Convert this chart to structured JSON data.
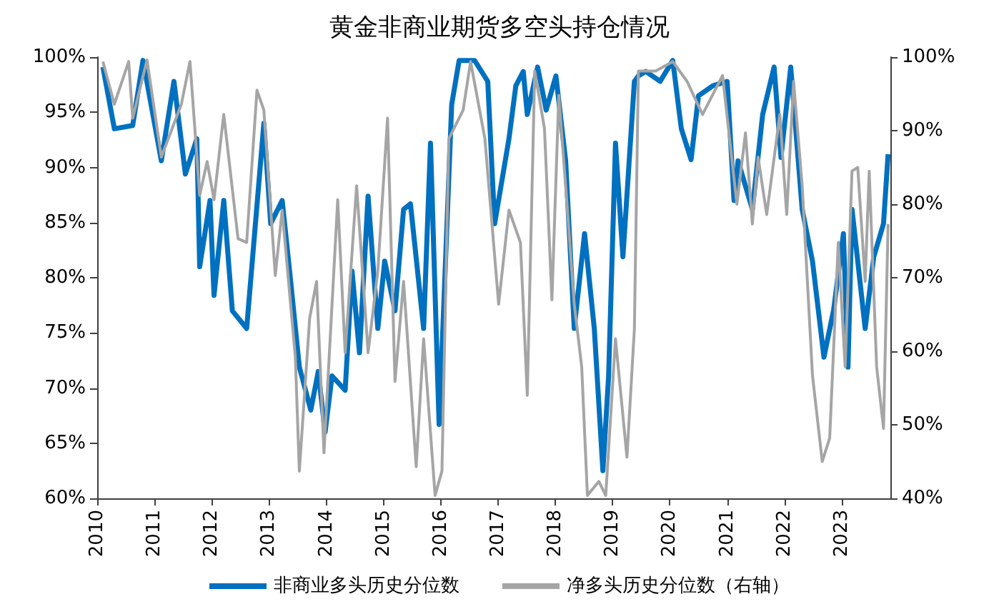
{
  "chart_data": {
    "type": "line",
    "title": "黄金非商业期货多空头持仓情况",
    "xlim": [
      2010,
      2023.85
    ],
    "xticks": [
      2010,
      2011,
      2012,
      2013,
      2014,
      2015,
      2016,
      2017,
      2018,
      2019,
      2020,
      2021,
      2022,
      2023
    ],
    "ylim": [
      60,
      100
    ],
    "yticks": [
      {
        "value": 60,
        "label": "60%"
      },
      {
        "value": 65,
        "label": "65%"
      },
      {
        "value": 70,
        "label": "70%"
      },
      {
        "value": 75,
        "label": "75%"
      },
      {
        "value": 80,
        "label": "80%"
      },
      {
        "value": 85,
        "label": "85%"
      },
      {
        "value": 90,
        "label": "90%"
      },
      {
        "value": 95,
        "label": "95%"
      },
      {
        "value": 100,
        "label": "100%"
      }
    ],
    "y2lim": [
      40,
      100
    ],
    "y2ticks": [
      {
        "value": 40,
        "label": "40%"
      },
      {
        "value": 50,
        "label": "50%"
      },
      {
        "value": 60,
        "label": "60%"
      },
      {
        "value": 70,
        "label": "70%"
      },
      {
        "value": 80,
        "label": "80%"
      },
      {
        "value": 90,
        "label": "90%"
      },
      {
        "value": 100,
        "label": "100%"
      }
    ],
    "grid": false,
    "legend": "bottom",
    "marker": "none",
    "series": [
      {
        "name": "非商业多头历史分位数",
        "color": "#0070c0",
        "x": [
          2010.1,
          2010.3,
          2010.62,
          2010.8,
          2011.12,
          2011.34,
          2011.54,
          2011.74,
          2011.79,
          2011.97,
          2012.04,
          2012.21,
          2012.36,
          2012.61,
          2012.91,
          2013.03,
          2013.23,
          2013.36,
          2013.53,
          2013.73,
          2013.86,
          2013.98,
          2014.1,
          2014.33,
          2014.45,
          2014.58,
          2014.73,
          2014.9,
          2015.02,
          2015.2,
          2015.35,
          2015.47,
          2015.7,
          2015.82,
          2015.97,
          2016.19,
          2016.32,
          2016.59,
          2016.82,
          2016.94,
          2017.19,
          2017.31,
          2017.44,
          2017.51,
          2017.69,
          2017.84,
          2018.01,
          2018.18,
          2018.33,
          2018.51,
          2018.68,
          2018.83,
          2018.93,
          2019.05,
          2019.18,
          2019.38,
          2019.45,
          2019.58,
          2019.83,
          2020.05,
          2020.2,
          2020.37,
          2020.5,
          2020.75,
          2021.0,
          2021.12,
          2021.19,
          2021.44,
          2021.62,
          2021.82,
          2021.94,
          2022.11,
          2022.31,
          2022.49,
          2022.69,
          2022.86,
          2023.03,
          2023.11,
          2023.18,
          2023.41,
          2023.56,
          2023.73,
          2023.81
        ],
        "values": [
          99.1,
          93.5,
          93.8,
          99.7,
          90.6,
          97.8,
          89.4,
          92.6,
          81,
          87,
          78.4,
          87,
          77,
          75.4,
          94,
          84.9,
          87,
          80.6,
          71.9,
          68,
          71.5,
          66,
          71.1,
          69.8,
          80.6,
          73.2,
          87.4,
          75.4,
          81.5,
          77,
          86.2,
          86.7,
          75.4,
          92.2,
          66.7,
          95.7,
          99.7,
          99.7,
          97.8,
          84.9,
          92.6,
          97.4,
          98.7,
          94.8,
          99.1,
          95.2,
          98.3,
          90.6,
          75.4,
          84,
          75.4,
          62.5,
          71.1,
          92.2,
          81.9,
          97.8,
          98.3,
          98.7,
          97.8,
          99.7,
          93.5,
          90.7,
          96.5,
          97.4,
          97.8,
          87,
          90.6,
          86.2,
          94.8,
          99.1,
          90.9,
          99.1,
          86.2,
          81.5,
          72.8,
          77.1,
          84,
          71.9,
          86.2,
          75.4,
          81.9,
          84.9,
          91.2
        ]
      },
      {
        "name": "净多头历史分位数（右轴）",
        "color": "#a5a5a5",
        "axis": "y2",
        "x": [
          2010.1,
          2010.3,
          2010.55,
          2010.62,
          2010.87,
          2011.12,
          2011.47,
          2011.62,
          2011.79,
          2011.92,
          2012.04,
          2012.21,
          2012.46,
          2012.61,
          2012.79,
          2012.91,
          2013.11,
          2013.23,
          2013.46,
          2013.53,
          2013.71,
          2013.83,
          2013.96,
          2014.2,
          2014.33,
          2014.53,
          2014.73,
          2014.9,
          2015.07,
          2015.2,
          2015.35,
          2015.57,
          2015.7,
          2015.9,
          2016.02,
          2016.14,
          2016.39,
          2016.52,
          2016.77,
          2017.01,
          2017.19,
          2017.39,
          2017.51,
          2017.64,
          2017.81,
          2017.94,
          2018.06,
          2018.18,
          2018.33,
          2018.46,
          2018.56,
          2018.76,
          2018.88,
          2019.05,
          2019.25,
          2019.38,
          2019.45,
          2019.75,
          2020.05,
          2020.3,
          2020.57,
          2020.92,
          2021.17,
          2021.32,
          2021.44,
          2021.54,
          2021.69,
          2021.92,
          2022.04,
          2022.16,
          2022.31,
          2022.49,
          2022.66,
          2022.79,
          2022.94,
          2023.06,
          2023.18,
          2023.28,
          2023.41,
          2023.48,
          2023.61,
          2023.73,
          2023.81
        ],
        "values": [
          99.4,
          93.6,
          99.4,
          91.7,
          99.6,
          86.4,
          93.6,
          99.4,
          81.2,
          85.8,
          80.6,
          92.2,
          75.3,
          74.8,
          95.5,
          92.8,
          70.3,
          79.2,
          59.2,
          43.7,
          64.5,
          69.5,
          46.2,
          80.6,
          59.8,
          82.5,
          59.8,
          70.9,
          91.7,
          55.9,
          69.5,
          44.3,
          61.7,
          40.4,
          43.7,
          88.9,
          92.8,
          99.4,
          88.9,
          66.4,
          79.2,
          74.8,
          54,
          98.1,
          90.3,
          67,
          94.8,
          82.5,
          66.4,
          57.9,
          40.4,
          42.3,
          40.4,
          61.7,
          45.6,
          63,
          98.1,
          98.1,
          99.4,
          96.7,
          92.2,
          97.5,
          80,
          89.7,
          77.3,
          86.4,
          78.6,
          92.2,
          78.6,
          96.7,
          82.5,
          56.7,
          45,
          48.2,
          74.8,
          57.9,
          84.5,
          85,
          69.5,
          84.5,
          57.9,
          49.5,
          77.3
        ]
      }
    ]
  }
}
